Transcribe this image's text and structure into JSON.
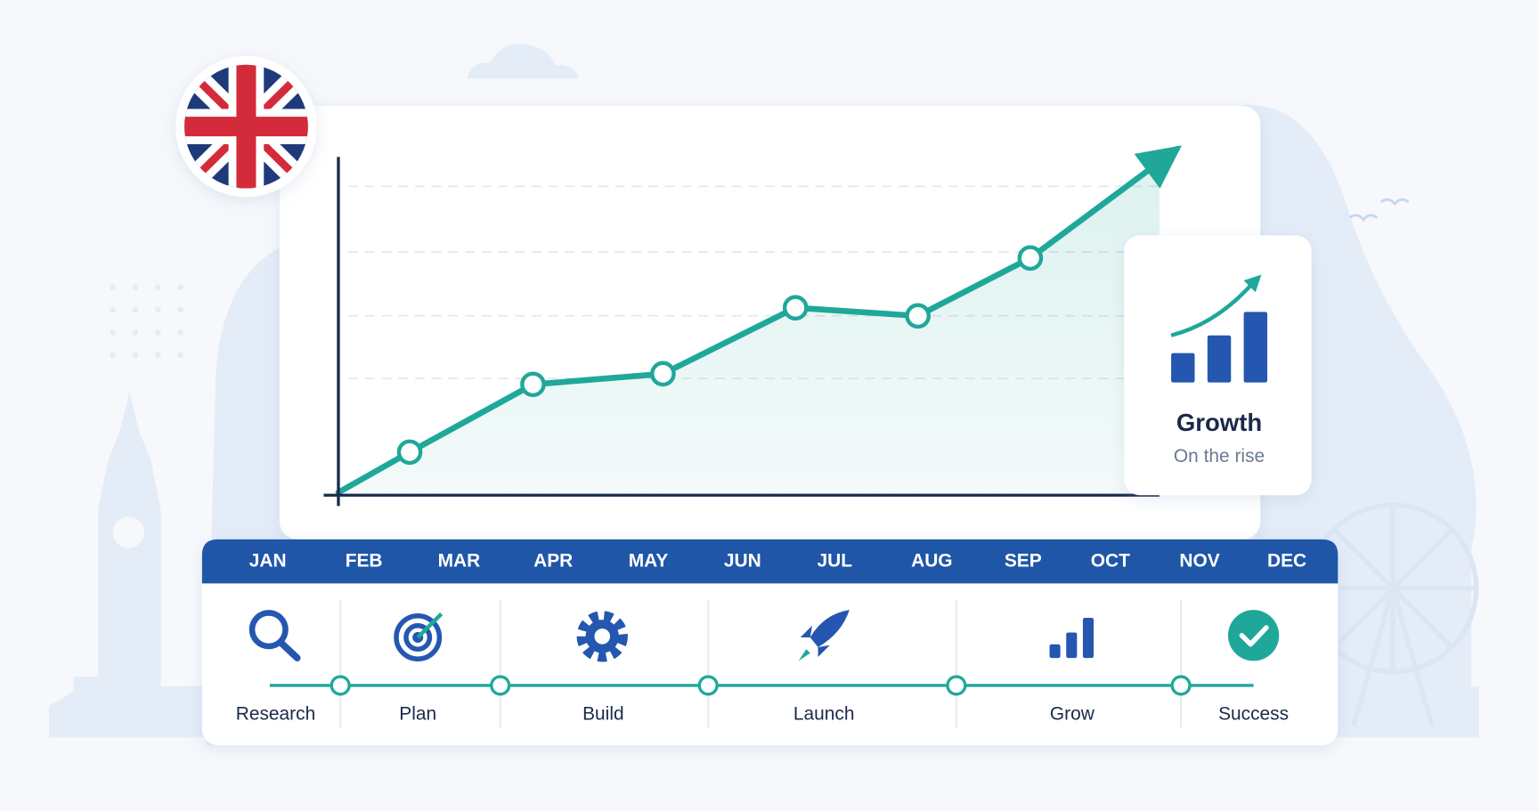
{
  "chart_data": {
    "type": "line",
    "x": [
      0,
      8.5,
      23.2,
      38.7,
      54.5,
      69.1,
      82.5,
      100
    ],
    "values": [
      0.8,
      12.2,
      31.4,
      34.4,
      53.1,
      50.8,
      67.2,
      98.1
    ],
    "xlim": [
      0,
      100
    ],
    "ylim": [
      0,
      100
    ],
    "color": "#1fa89a"
  },
  "card": {
    "title": "Growth",
    "subtitle": "On the rise"
  },
  "timeline": {
    "months": [
      "JAN",
      "FEB",
      "MAR",
      "APR",
      "MAY",
      "JUN",
      "JUL",
      "AUG",
      "SEP",
      "OCT",
      "NOV",
      "DEC"
    ],
    "stages": [
      "Research",
      "Plan",
      "Build",
      "Launch",
      "Grow",
      "Success"
    ]
  }
}
